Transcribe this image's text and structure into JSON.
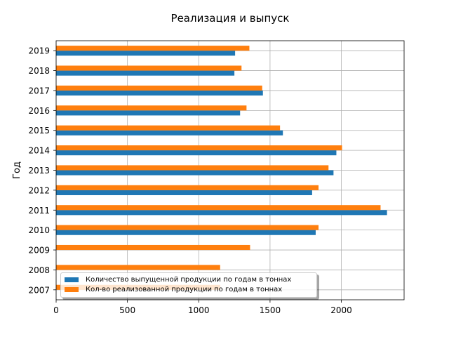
{
  "chart_data": {
    "type": "bar",
    "orientation": "horizontal",
    "title": "Реализация и выпуск",
    "ylabel": "Год",
    "xlabel": "",
    "categories": [
      "2007",
      "2008",
      "2009",
      "2010",
      "2011",
      "2012",
      "2013",
      "2014",
      "2015",
      "2016",
      "2017",
      "2018",
      "2019"
    ],
    "series": [
      {
        "name": "Количество выпущенной продукции по годам в тоннах",
        "color": "#1f77b4",
        "values": [
          0,
          0,
          0,
          1820,
          2320,
          1795,
          1945,
          1965,
          1590,
          1290,
          1450,
          1250,
          1255
        ]
      },
      {
        "name": "Кол-во реализованной продукции по годам в тоннах",
        "color": "#ff7f0e",
        "values": [
          1150,
          1150,
          1360,
          1840,
          2275,
          1840,
          1910,
          2005,
          1570,
          1335,
          1445,
          1300,
          1355
        ]
      }
    ],
    "xticks": [
      "0",
      "500",
      "1000",
      "1500",
      "2000"
    ],
    "xlim": [
      0,
      2440
    ],
    "grid": true,
    "legend_position": "lower-left"
  }
}
